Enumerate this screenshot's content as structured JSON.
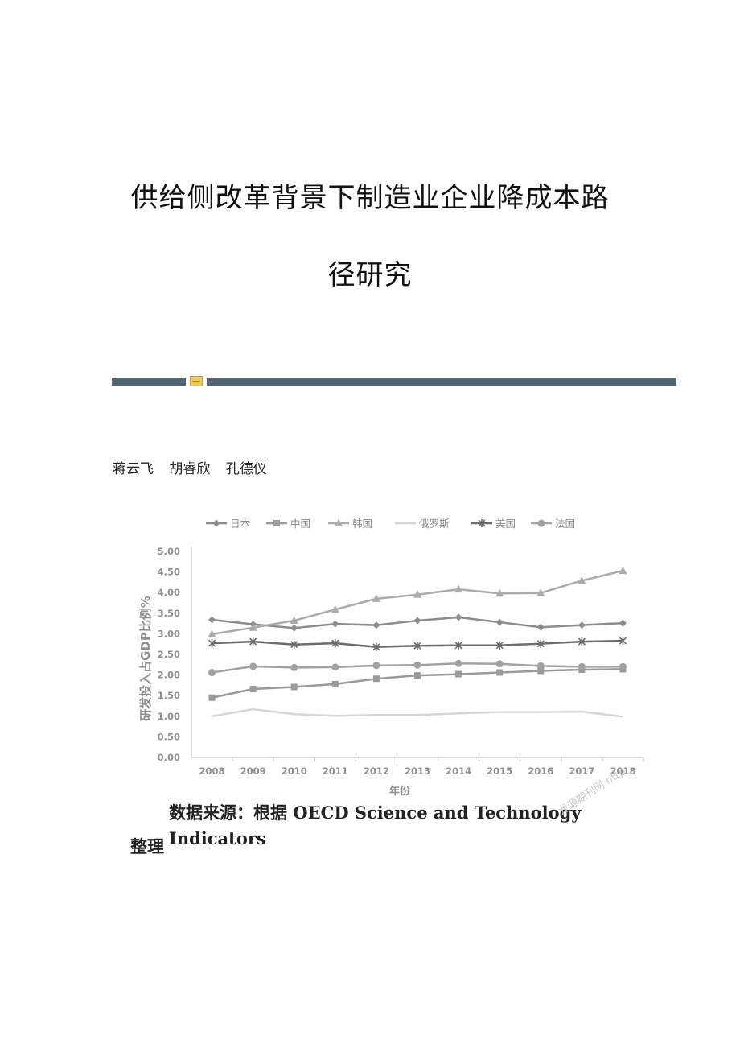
{
  "document": {
    "title_line1": "供给侧改革背景下制造业企业降成本路",
    "title_line2": "径研究",
    "authors": "蒋云飞 胡睿欣 孔德仪",
    "source_line1": "数据来源：根据 OECD Science and Technology Indicators",
    "source_line2": "整理",
    "watermark": "龙源期刊网 http"
  },
  "colors": {
    "divider": "#4f6475",
    "badge": "#f0c75a"
  },
  "chart_data": {
    "type": "line",
    "title": "",
    "xlabel": "年份",
    "ylabel": "研发投入占GDP比例%",
    "ylim": [
      0,
      5
    ],
    "y_ticks": [
      "0.00",
      "0.50",
      "1.00",
      "1.50",
      "2.00",
      "2.50",
      "3.00",
      "3.50",
      "4.00",
      "4.50",
      "5.00"
    ],
    "grid": false,
    "legend_position": "top",
    "categories": [
      "2008",
      "2009",
      "2010",
      "2011",
      "2012",
      "2013",
      "2014",
      "2015",
      "2016",
      "2017",
      "2018"
    ],
    "series": [
      {
        "name": "日本",
        "marker": "diamond",
        "color": "#8c8c8c",
        "values": [
          3.34,
          3.23,
          3.14,
          3.24,
          3.21,
          3.32,
          3.4,
          3.28,
          3.16,
          3.21,
          3.26
        ]
      },
      {
        "name": "中国",
        "marker": "square",
        "color": "#9a9a9a",
        "values": [
          1.45,
          1.66,
          1.71,
          1.78,
          1.91,
          1.99,
          2.02,
          2.06,
          2.1,
          2.13,
          2.14
        ]
      },
      {
        "name": "韩国",
        "marker": "triangle",
        "color": "#ababab",
        "values": [
          2.99,
          3.15,
          3.32,
          3.59,
          3.85,
          3.95,
          4.08,
          3.98,
          3.99,
          4.29,
          4.53
        ]
      },
      {
        "name": "俄罗斯",
        "marker": "none",
        "color": "#d6d6d6",
        "values": [
          1.0,
          1.17,
          1.05,
          1.01,
          1.03,
          1.03,
          1.07,
          1.1,
          1.1,
          1.11,
          0.99
        ]
      },
      {
        "name": "美国",
        "marker": "star",
        "color": "#6c6c6c",
        "values": [
          2.77,
          2.81,
          2.74,
          2.77,
          2.68,
          2.71,
          2.72,
          2.72,
          2.76,
          2.81,
          2.83
        ]
      },
      {
        "name": "法国",
        "marker": "circle",
        "color": "#a2a2a2",
        "values": [
          2.06,
          2.21,
          2.18,
          2.19,
          2.23,
          2.24,
          2.28,
          2.27,
          2.22,
          2.2,
          2.2
        ]
      }
    ]
  }
}
